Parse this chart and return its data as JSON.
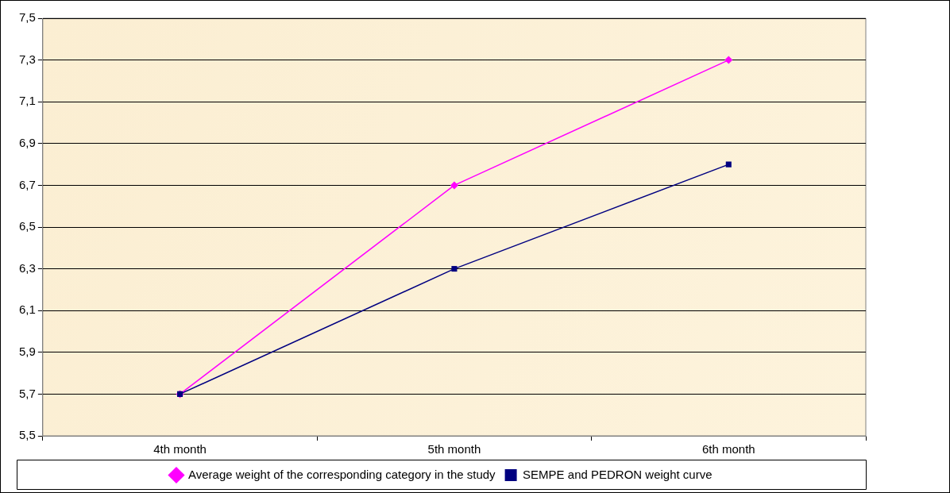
{
  "chart_data": {
    "type": "line",
    "categories": [
      "4th month",
      "5th month",
      "6th month"
    ],
    "series": [
      {
        "name": "Average weight of the corresponding category in the study",
        "color": "#ff00ff",
        "marker": "diamond",
        "values": [
          5.7,
          6.7,
          7.3
        ]
      },
      {
        "name": "SEMPE and PEDRON weight curve",
        "color": "#000080",
        "marker": "square",
        "values": [
          5.7,
          6.3,
          6.8
        ]
      }
    ],
    "ylim": [
      5.5,
      7.5
    ],
    "yticks": [
      {
        "value": 5.5,
        "label": "5,5"
      },
      {
        "value": 5.7,
        "label": "5,7"
      },
      {
        "value": 5.9,
        "label": "5,9"
      },
      {
        "value": 6.1,
        "label": "6,1"
      },
      {
        "value": 6.3,
        "label": "6,3"
      },
      {
        "value": 6.5,
        "label": "6,5"
      },
      {
        "value": 6.7,
        "label": "6,7"
      },
      {
        "value": 6.9,
        "label": "6,9"
      },
      {
        "value": 7.1,
        "label": "7,1"
      },
      {
        "value": 7.3,
        "label": "7,3"
      },
      {
        "value": 7.5,
        "label": "7,5"
      }
    ],
    "grid": "y",
    "legend": "bottom"
  }
}
